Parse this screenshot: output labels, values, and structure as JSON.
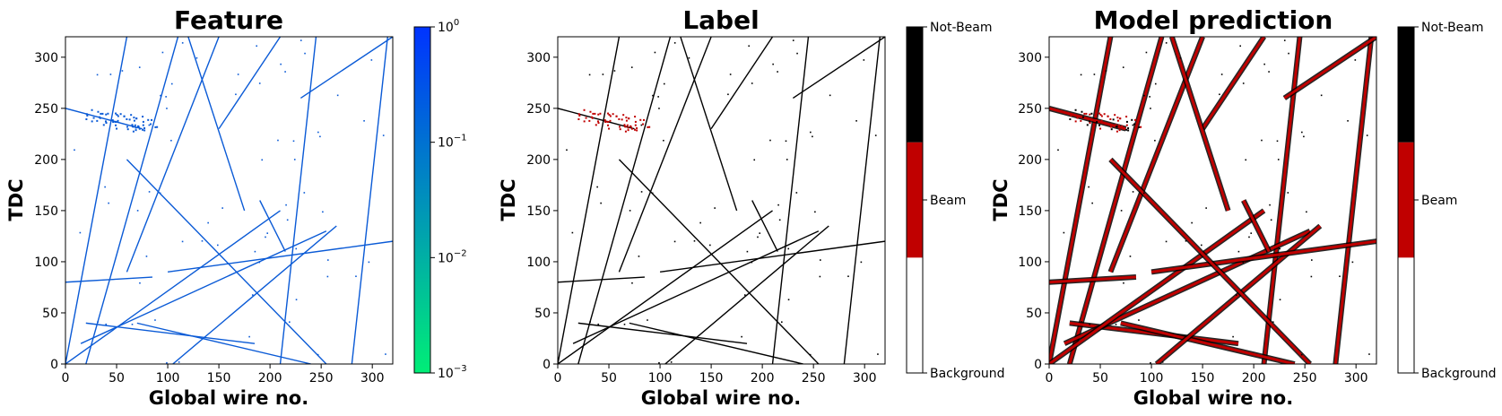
{
  "chart_data": [
    {
      "type": "heatmap",
      "title": "Feature",
      "xlabel": "Global wire no.",
      "ylabel": "TDC",
      "xlim": [
        0,
        320
      ],
      "ylim": [
        0,
        320
      ],
      "xticks": [
        0,
        50,
        100,
        150,
        200,
        250,
        300
      ],
      "yticks": [
        0,
        50,
        100,
        150,
        200,
        250,
        300
      ],
      "point_color": "#0a5ad6",
      "colorbar": {
        "scale": "log",
        "range": [
          0.001,
          1
        ],
        "ticks": [
          {
            "base": "10",
            "exp": "0",
            "value": 1
          },
          {
            "base": "10",
            "exp": "−1",
            "value": 0.1
          },
          {
            "base": "10",
            "exp": "−2",
            "value": 0.01
          },
          {
            "base": "10",
            "exp": "−3",
            "value": 0.001
          }
        ],
        "colors": [
          "#00ee77",
          "#0033ff"
        ]
      },
      "tracks": [
        [
          0,
          0,
          60,
          320
        ],
        [
          20,
          0,
          110,
          320
        ],
        [
          60,
          90,
          150,
          320
        ],
        [
          150,
          230,
          210,
          320
        ],
        [
          280,
          0,
          315,
          320
        ],
        [
          210,
          0,
          245,
          320
        ],
        [
          120,
          320,
          175,
          150
        ],
        [
          230,
          260,
          320,
          320
        ],
        [
          0,
          250,
          75,
          230
        ],
        [
          0,
          80,
          85,
          85
        ],
        [
          20,
          40,
          185,
          20
        ],
        [
          70,
          40,
          240,
          0
        ],
        [
          15,
          20,
          255,
          130
        ],
        [
          105,
          0,
          265,
          135
        ],
        [
          0,
          0,
          210,
          150
        ],
        [
          100,
          90,
          320,
          120
        ],
        [
          60,
          200,
          255,
          0
        ],
        [
          190,
          160,
          215,
          110
        ]
      ],
      "blob": {
        "x": 40,
        "y": 240,
        "count": 60
      }
    },
    {
      "type": "heatmap",
      "title": "Label",
      "xlabel": "Global wire no.",
      "ylabel": "TDC",
      "xlim": [
        0,
        320
      ],
      "ylim": [
        0,
        320
      ],
      "xticks": [
        0,
        50,
        100,
        150,
        200,
        250,
        300
      ],
      "yticks": [
        0,
        50,
        100,
        150,
        200,
        250,
        300
      ],
      "point_color": "#000000",
      "beam_color": "#c00000",
      "colorbar": {
        "scale": "categorical",
        "categories": [
          "Background",
          "Beam",
          "Not-Beam"
        ],
        "colors": [
          "#ffffff",
          "#c00000",
          "#000000"
        ]
      }
    },
    {
      "type": "heatmap",
      "title": "Model prediction",
      "xlabel": "Global wire no.",
      "ylabel": "TDC",
      "xlim": [
        0,
        320
      ],
      "ylim": [
        0,
        320
      ],
      "xticks": [
        0,
        50,
        100,
        150,
        200,
        250,
        300
      ],
      "yticks": [
        0,
        50,
        100,
        150,
        200,
        250,
        300
      ],
      "point_color": "#000000",
      "beam_color": "#c00000",
      "colorbar": {
        "scale": "categorical",
        "categories": [
          "Background",
          "Beam",
          "Not-Beam"
        ],
        "colors": [
          "#ffffff",
          "#c00000",
          "#000000"
        ]
      }
    }
  ]
}
